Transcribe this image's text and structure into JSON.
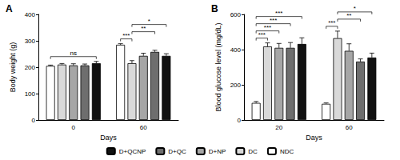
{
  "chart_data": [
    {
      "type": "bar",
      "title": "A",
      "xlabel": "Days",
      "ylabel": "Body weight (g)",
      "categories": [
        "0",
        "60"
      ],
      "ylim": [
        0,
        400
      ],
      "yticks": [
        0,
        100,
        200,
        300,
        400
      ],
      "grid": false,
      "legend": "bottom",
      "series": [
        {
          "name": "NDC",
          "color": "#ffffff",
          "values": [
            205,
            285
          ],
          "errors": [
            3,
            4
          ]
        },
        {
          "name": "DC",
          "color": "#d9d9d9",
          "values": [
            210,
            215
          ],
          "errors": [
            4,
            10
          ]
        },
        {
          "name": "D+NP",
          "color": "#a6a6a6",
          "values": [
            207,
            243
          ],
          "errors": [
            6,
            10
          ]
        },
        {
          "name": "D+QC",
          "color": "#6e6e6e",
          "values": [
            207,
            258
          ],
          "errors": [
            5,
            6
          ]
        },
        {
          "name": "D+QCNP",
          "color": "#111111",
          "values": [
            215,
            243
          ],
          "errors": [
            7,
            8
          ]
        }
      ],
      "annotations": [
        {
          "text": "ns",
          "category": "0",
          "from": "NDC",
          "to": "D+QCNP"
        },
        {
          "text": "***",
          "category": "60",
          "from": "NDC",
          "to": "DC"
        },
        {
          "text": "**",
          "category": "60",
          "from": "DC",
          "to": "D+QC"
        },
        {
          "text": "*",
          "category": "60",
          "from": "DC",
          "to": "D+QCNP"
        }
      ]
    },
    {
      "type": "bar",
      "title": "B",
      "xlabel": "Days",
      "ylabel": "Blood glucose level (mg/dL)",
      "categories": [
        "20",
        "60"
      ],
      "ylim": [
        0,
        600
      ],
      "yticks": [
        0,
        200,
        400,
        600
      ],
      "grid": false,
      "legend": "bottom",
      "series": [
        {
          "name": "NDC",
          "color": "#ffffff",
          "values": [
            97,
            92
          ],
          "errors": [
            8,
            5
          ]
        },
        {
          "name": "DC",
          "color": "#d9d9d9",
          "values": [
            418,
            465
          ],
          "errors": [
            20,
            40
          ]
        },
        {
          "name": "D+NP",
          "color": "#a6a6a6",
          "values": [
            410,
            393
          ],
          "errors": [
            25,
            40
          ]
        },
        {
          "name": "D+QC",
          "color": "#6e6e6e",
          "values": [
            410,
            332
          ],
          "errors": [
            30,
            15
          ]
        },
        {
          "name": "D+QCNP",
          "color": "#111111",
          "values": [
            432,
            355
          ],
          "errors": [
            35,
            25
          ]
        }
      ],
      "annotations": [
        {
          "text": "***",
          "category": "20",
          "from": "NDC",
          "to": "DC"
        },
        {
          "text": "***",
          "category": "20",
          "from": "NDC",
          "to": "D+NP"
        },
        {
          "text": "***",
          "category": "20",
          "from": "NDC",
          "to": "D+QC"
        },
        {
          "text": "***",
          "category": "20",
          "from": "NDC",
          "to": "D+QCNP"
        },
        {
          "text": "***",
          "category": "60",
          "from": "NDC",
          "to": "DC"
        },
        {
          "text": "**",
          "category": "60",
          "from": "DC",
          "to": "D+QC"
        },
        {
          "text": "*",
          "category": "60",
          "from": "DC",
          "to": "D+QCNP"
        }
      ]
    }
  ]
}
